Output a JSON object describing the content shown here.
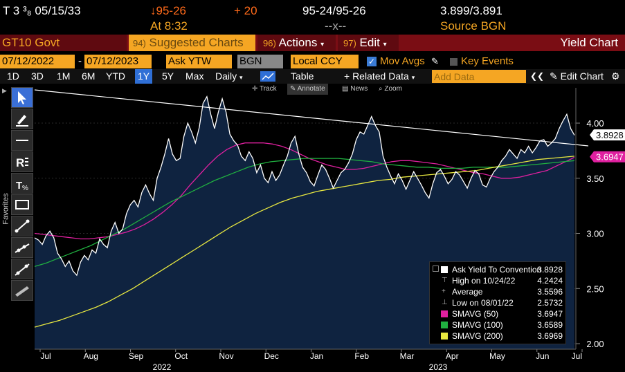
{
  "quote": {
    "security": "T 3 ³₈ 05/15/33",
    "price": "↓95-26",
    "change": "+ 20",
    "bid_ask": "95-24/95-26",
    "yields": "3.899/3.891",
    "time": "At 8:32",
    "spacer": "--x--",
    "source": "Source BGN"
  },
  "titlebar": {
    "ticker": "GT10 Govt",
    "suggested": "Suggested Charts",
    "suggested_num": "94)",
    "actions": "Actions",
    "actions_num": "96)",
    "edit": "Edit",
    "edit_num": "97)",
    "title": "Yield Chart"
  },
  "controls": {
    "start_date": "07/12/2022",
    "dash": "-",
    "end_date": "07/12/2023",
    "field": "Ask YTW",
    "source": "BGN",
    "currency": "Local CCY",
    "mov_avgs": "Mov Avgs",
    "key_events": "Key Events"
  },
  "periods": [
    "1D",
    "3D",
    "1M",
    "6M",
    "YTD",
    "1Y",
    "5Y",
    "Max"
  ],
  "active_period": "1Y",
  "frequency": "Daily",
  "table_label": "Table",
  "related_data": "+ Related Data",
  "add_data_placeholder": "Add Data",
  "edit_chart": "Edit Chart",
  "chart_tools": [
    "Track",
    "Annotate",
    "News",
    "Zoom"
  ],
  "favorites_label": "Favorites",
  "colors": {
    "amber": "#f5a623",
    "price_line": "#ffffff",
    "area_fill": "#0f2340",
    "smavg50": "#e020a0",
    "smavg100": "#20b040",
    "smavg200": "#e8e840",
    "trendline": "#ffffff"
  },
  "chart_data": {
    "type": "line",
    "ylim": [
      1.95,
      4.32
    ],
    "y_ticks": [
      2.0,
      2.5,
      3.0,
      3.5,
      4.0
    ],
    "y_tick_labels": [
      "2.00",
      "2.50",
      "3.00",
      "3.50",
      "4.00"
    ],
    "x_tick_labels": [
      "Jul",
      "Aug",
      "Sep",
      "Oct",
      "Nov",
      "Dec",
      "Jan",
      "Feb",
      "Mar",
      "Apr",
      "May",
      "Jun",
      "Jul"
    ],
    "year_labels": [
      "2022",
      "2023"
    ],
    "last_value_labels": [
      "3.8928",
      "3.6947"
    ],
    "series": [
      {
        "name": "Ask Yield To Convention",
        "values": [
          2.96,
          2.94,
          2.9,
          2.98,
          3.02,
          2.96,
          2.82,
          2.77,
          2.7,
          2.75,
          2.66,
          2.62,
          2.74,
          2.8,
          2.76,
          2.85,
          2.82,
          2.95,
          2.9,
          2.87,
          3.02,
          3.1,
          3.0,
          3.04,
          3.18,
          3.26,
          3.3,
          3.24,
          3.37,
          3.44,
          3.36,
          3.3,
          3.5,
          3.6,
          3.72,
          3.86,
          3.72,
          3.66,
          3.68,
          3.88,
          4.0,
          3.92,
          3.82,
          3.96,
          4.18,
          4.24,
          4.08,
          3.95,
          4.1,
          4.22,
          4.1,
          3.9,
          3.84,
          3.8,
          3.7,
          3.66,
          3.74,
          3.68,
          3.55,
          3.62,
          3.5,
          3.46,
          3.56,
          3.48,
          3.53,
          3.62,
          3.7,
          3.82,
          3.88,
          3.72,
          3.6,
          3.55,
          3.47,
          3.43,
          3.53,
          3.62,
          3.58,
          3.5,
          3.41,
          3.48,
          3.55,
          3.58,
          3.64,
          3.72,
          3.85,
          3.92,
          3.9,
          3.98,
          4.06,
          3.98,
          3.92,
          3.7,
          3.6,
          3.52,
          3.45,
          3.54,
          3.48,
          3.4,
          3.48,
          3.56,
          3.5,
          3.44,
          3.37,
          3.32,
          3.45,
          3.55,
          3.58,
          3.52,
          3.45,
          3.49,
          3.56,
          3.53,
          3.47,
          3.41,
          3.5,
          3.57,
          3.54,
          3.44,
          3.42,
          3.5,
          3.56,
          3.6,
          3.66,
          3.7,
          3.76,
          3.72,
          3.68,
          3.76,
          3.73,
          3.79,
          3.73,
          3.78,
          3.84,
          3.85,
          3.79,
          3.82,
          3.86,
          3.95,
          4.02,
          4.08,
          3.95,
          3.89
        ]
      },
      {
        "name": "SMAVG (50)",
        "values": [
          3.0,
          2.99,
          2.98,
          2.97,
          2.96,
          2.95,
          2.95,
          2.96,
          2.97,
          2.99,
          3.01,
          3.04,
          3.08,
          3.13,
          3.19,
          3.26,
          3.34,
          3.44,
          3.53,
          3.62,
          3.7,
          3.76,
          3.8,
          3.82,
          3.82,
          3.82,
          3.81,
          3.79,
          3.76,
          3.72,
          3.68,
          3.65,
          3.62,
          3.6,
          3.58,
          3.58,
          3.59,
          3.61,
          3.63,
          3.65,
          3.66,
          3.66,
          3.65,
          3.64,
          3.63,
          3.61,
          3.59,
          3.57,
          3.55,
          3.54,
          3.52,
          3.5,
          3.5,
          3.51,
          3.53,
          3.55,
          3.57,
          3.61,
          3.65,
          3.69
        ]
      },
      {
        "name": "SMAVG (100)",
        "values": [
          2.7,
          2.73,
          2.77,
          2.81,
          2.85,
          2.89,
          2.94,
          2.99,
          3.04,
          3.1,
          3.16,
          3.22,
          3.28,
          3.33,
          3.38,
          3.43,
          3.48,
          3.52,
          3.56,
          3.6,
          3.63,
          3.65,
          3.66,
          3.67,
          3.68,
          3.68,
          3.68,
          3.68,
          3.67,
          3.66,
          3.65,
          3.63,
          3.62,
          3.61,
          3.6,
          3.6,
          3.59,
          3.59,
          3.59,
          3.6,
          3.6,
          3.6,
          3.6,
          3.61,
          3.62,
          3.63,
          3.64,
          3.65,
          3.66
        ]
      },
      {
        "name": "SMAVG (200)",
        "values": [
          2.15,
          2.18,
          2.21,
          2.25,
          2.29,
          2.33,
          2.38,
          2.44,
          2.5,
          2.57,
          2.64,
          2.71,
          2.78,
          2.85,
          2.92,
          2.99,
          3.06,
          3.12,
          3.18,
          3.23,
          3.28,
          3.32,
          3.35,
          3.38,
          3.4,
          3.42,
          3.44,
          3.46,
          3.48,
          3.49,
          3.51,
          3.52,
          3.53,
          3.54,
          3.55,
          3.56,
          3.57,
          3.59,
          3.61,
          3.63,
          3.65,
          3.67,
          3.68,
          3.69,
          3.7
        ]
      }
    ],
    "legend": [
      {
        "label": "Ask Yield To Convention",
        "value": "3.8928",
        "color": "#ffffff",
        "marker": "box"
      },
      {
        "label": "High on 10/24/22",
        "value": "4.2424",
        "color": "#888888",
        "marker": "high"
      },
      {
        "label": "Average",
        "value": "3.5596",
        "color": "#888888",
        "marker": "avg"
      },
      {
        "label": "Low on 08/01/22",
        "value": "2.5732",
        "color": "#888888",
        "marker": "low"
      },
      {
        "label": "SMAVG (50)",
        "value": "3.6947",
        "color": "#e020a0",
        "marker": "box"
      },
      {
        "label": "SMAVG (100)",
        "value": "3.6589",
        "color": "#20b040",
        "marker": "box"
      },
      {
        "label": "SMAVG (200)",
        "value": "3.6969",
        "color": "#e8e840",
        "marker": "box"
      }
    ]
  }
}
